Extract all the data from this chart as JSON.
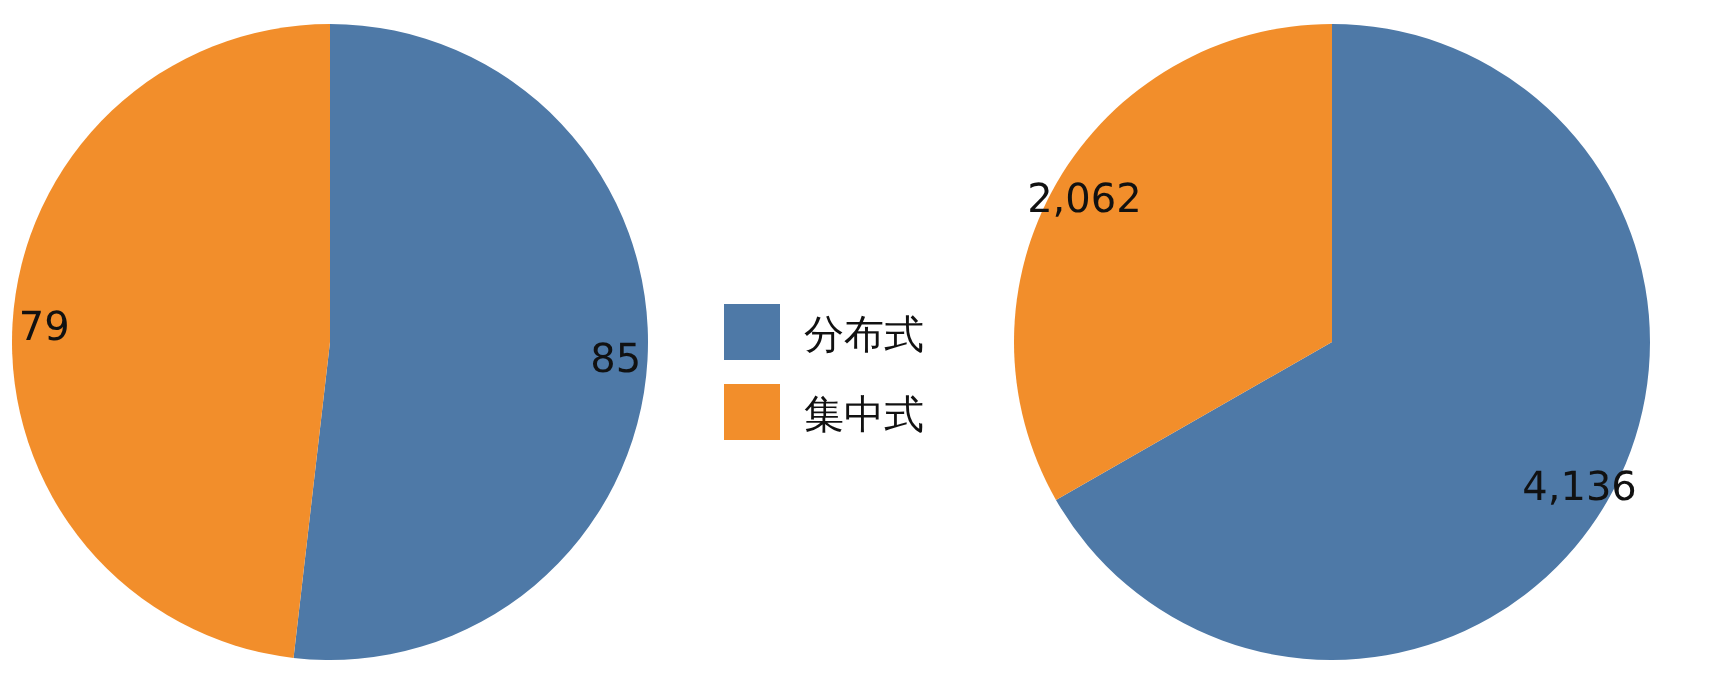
{
  "chart_data": [
    {
      "type": "pie",
      "categories": [
        "分布式",
        "集中式"
      ],
      "values": [
        85,
        79
      ],
      "colors": [
        "#4e79a7",
        "#f28e2b"
      ],
      "data_labels": true,
      "legend": "right"
    },
    {
      "type": "pie",
      "categories": [
        null,
        null
      ],
      "values": [
        4136,
        2062
      ],
      "colors": [
        "#4e79a7",
        "#f28e2b"
      ],
      "value_labels": [
        "4,136",
        "2,062"
      ]
    }
  ]
}
